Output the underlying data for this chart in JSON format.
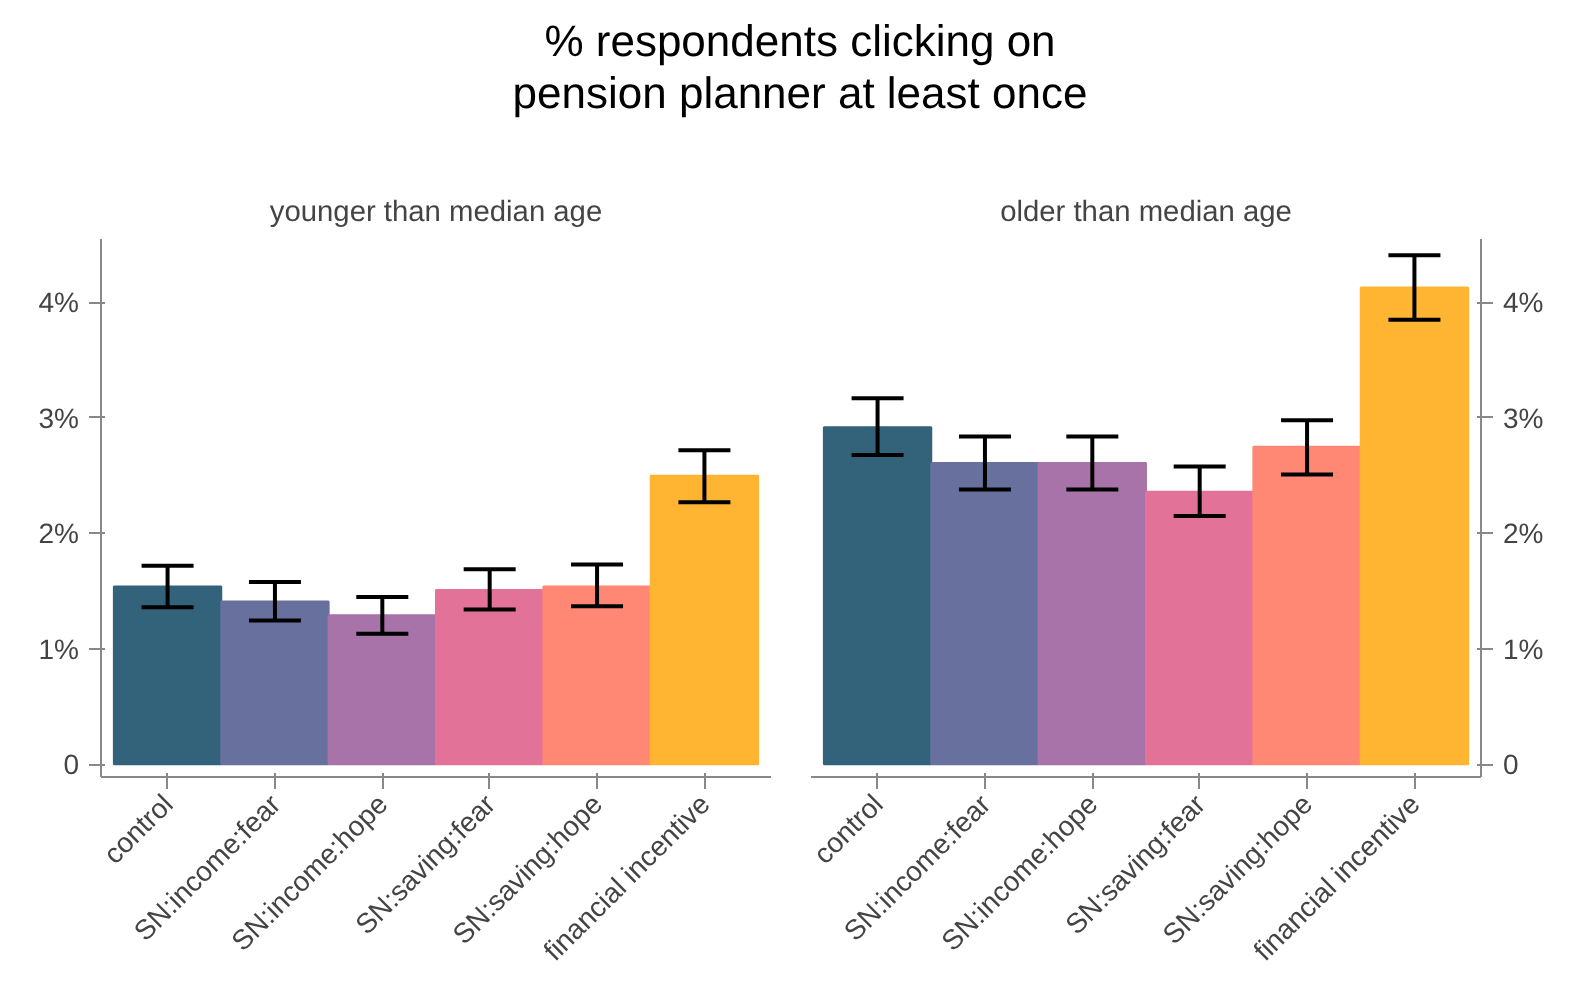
{
  "chart_data": [
    {
      "type": "bar",
      "title": "% respondents clicking on\npension planner at least once",
      "subtitle": "younger than median age",
      "categories": [
        "control",
        "SN:income:fear",
        "SN:income:hope",
        "SN:saving:fear",
        "SN:saving:hope",
        "financial incentive"
      ],
      "values": [
        1.54,
        1.41,
        1.29,
        1.51,
        1.54,
        2.5
      ],
      "colors": [
        "#33637a",
        "#68709e",
        "#a873a9",
        "#e27298",
        "#ff8874",
        "#ffb531"
      ],
      "errors": [
        [
          1.36,
          1.72
        ],
        [
          1.245,
          1.58
        ],
        [
          1.13,
          1.45
        ],
        [
          1.34,
          1.69
        ],
        [
          1.37,
          1.73
        ],
        [
          2.27,
          2.72
        ]
      ],
      "ylim": [
        -0.11,
        4.55
      ],
      "yticks": [
        0,
        {
          "value": 1,
          "label": "1%"
        },
        {
          "value": 2,
          "label": "2%"
        },
        {
          "value": 3,
          "label": "3%"
        },
        {
          "value": 4,
          "label": "4%"
        }
      ],
      "grid": false
    },
    {
      "type": "bar",
      "subtitle": "older than median age",
      "categories": [
        "control",
        "SN:income:fear",
        "SN:income:hope",
        "SN:saving:fear",
        "SN:saving:hope",
        "financial incentive"
      ],
      "values": [
        2.92,
        2.61,
        2.61,
        2.36,
        2.75,
        4.13
      ],
      "colors": [
        "#33637a",
        "#68709e",
        "#a873a9",
        "#e27298",
        "#ff8874",
        "#ffb531"
      ],
      "errors": [
        [
          2.68,
          3.17
        ],
        [
          2.38,
          2.84
        ],
        [
          2.38,
          2.84
        ],
        [
          2.15,
          2.58
        ],
        [
          2.51,
          2.98
        ],
        [
          3.85,
          4.41
        ]
      ],
      "ylim": [
        -0.11,
        4.55
      ],
      "yticks": [
        0,
        {
          "value": 1,
          "label": "1%"
        },
        {
          "value": 2,
          "label": "2%"
        },
        {
          "value": 3,
          "label": "3%"
        },
        {
          "value": 4,
          "label": "4%"
        }
      ],
      "grid": false
    }
  ]
}
